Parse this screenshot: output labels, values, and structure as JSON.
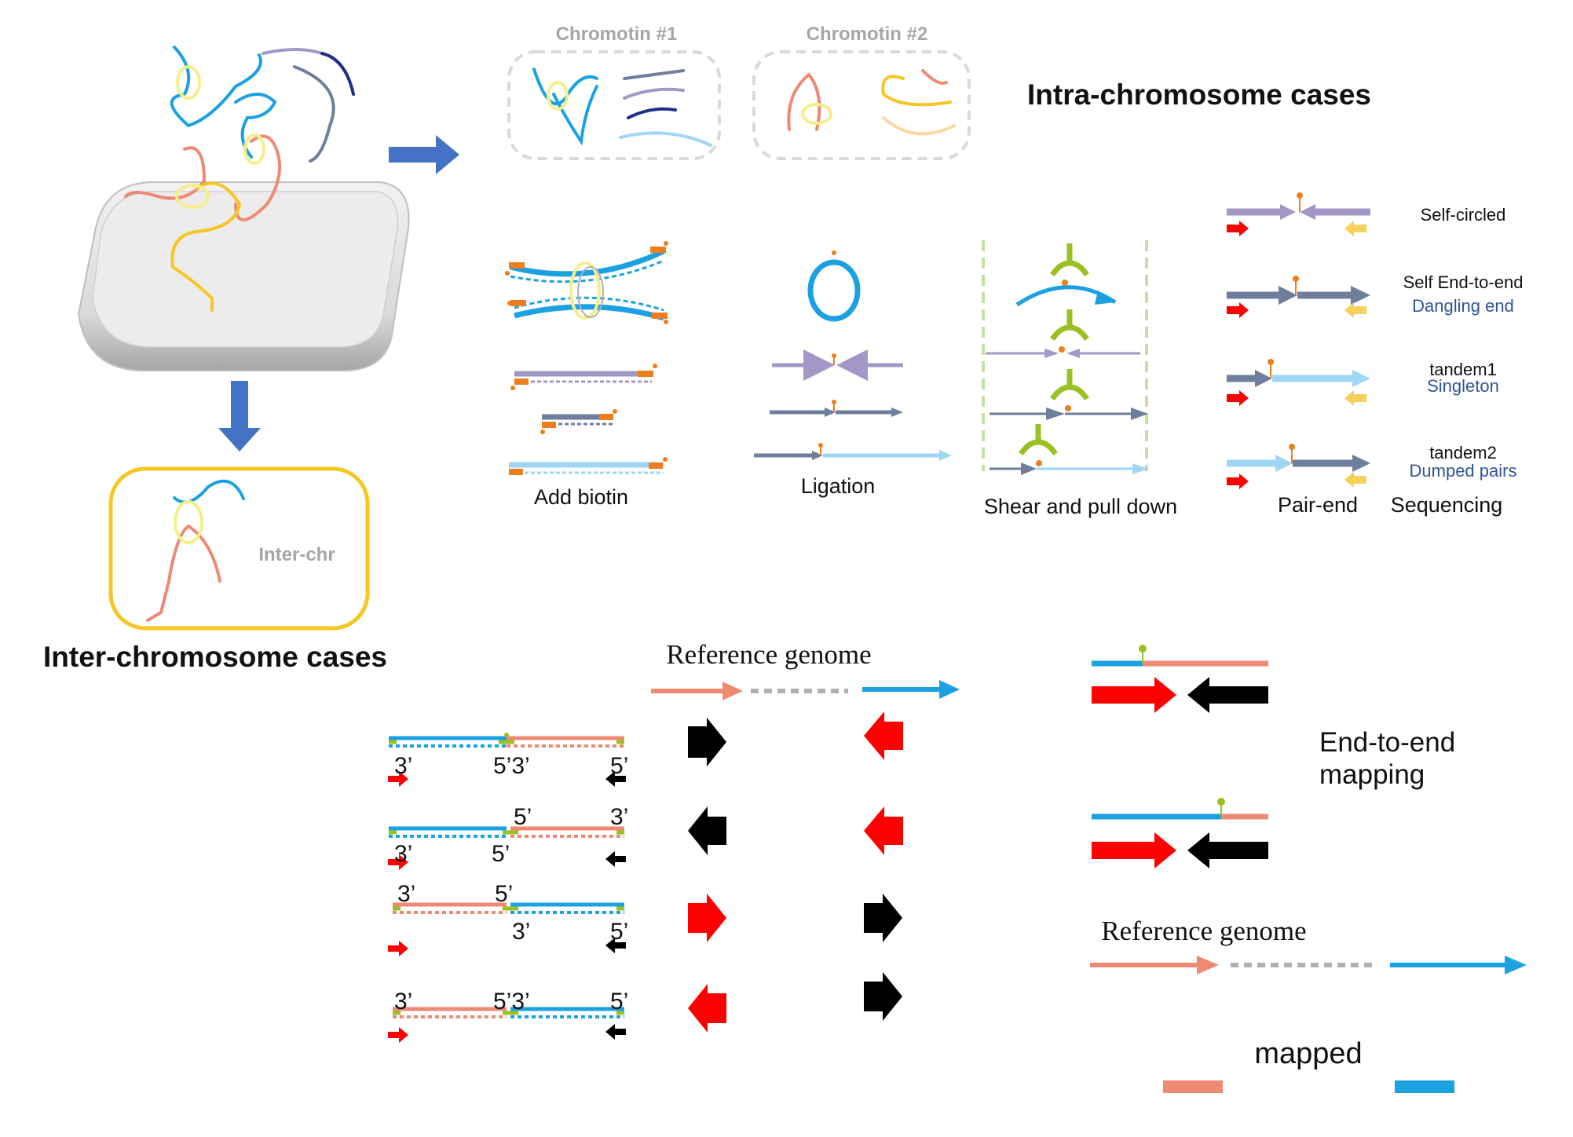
{
  "titles": {
    "intra": "Intra-chromosome cases",
    "inter": "Inter-chromosome cases"
  },
  "chromatin": {
    "c1": "Chromotin #1",
    "c2": "Chromotin #2",
    "inter": "Inter-chr"
  },
  "steps": {
    "biotin": "Add biotin",
    "ligation": "Ligation",
    "shear": "Shear and pull down",
    "pair_end": "Pair-end",
    "sequencing": "Sequencing"
  },
  "pairs": {
    "self_circled": "Self-circled",
    "self_end": "Self End-to-end",
    "dangling": "Dangling end",
    "tandem1": "tandem1",
    "singleton": "Singleton",
    "tandem2": "tandem2",
    "dumped": "Dumped pairs"
  },
  "mapping": {
    "reference_top": "Reference genome",
    "reference_bottom": "Reference genome",
    "end_to_end_1": "End-to-end",
    "end_to_end_2": "mapping",
    "mapped": "mapped"
  },
  "ends": {
    "three": "3’",
    "five": "5’",
    "five_three": "5’3’"
  },
  "colors": {
    "blue": "#1ba1e2",
    "salmon": "#ee8a73",
    "purple": "#a397c8",
    "slate": "#6e7f9c",
    "lightblue": "#9fd6f5",
    "yellow": "#f7c623",
    "orange": "#ee7d1e",
    "green": "#99c124",
    "red": "#ff0000",
    "arrow_blue": "#4472c4"
  }
}
